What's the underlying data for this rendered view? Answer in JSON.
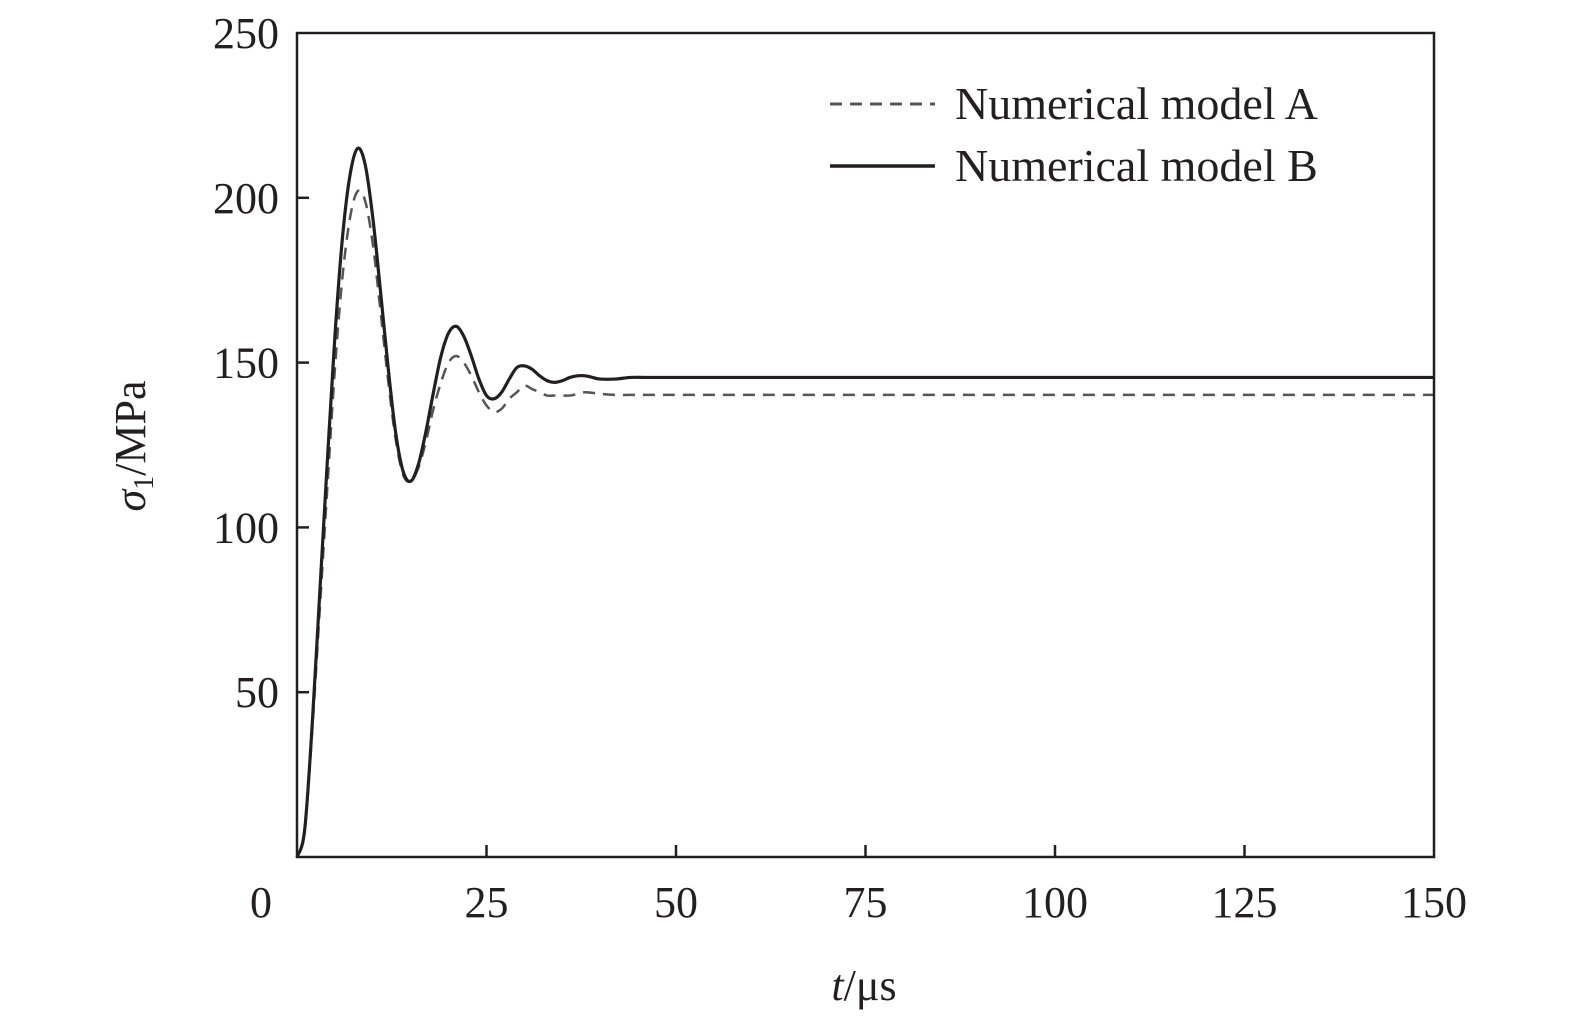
{
  "chart_data": {
    "type": "line",
    "xlabel": {
      "var": "t",
      "unit": "/μs"
    },
    "ylabel": {
      "var": "σ",
      "sub": "1",
      "unit": "/MPa"
    },
    "xlim": [
      0,
      150
    ],
    "ylim": [
      0,
      250
    ],
    "x_ticks": [
      0,
      25,
      50,
      75,
      100,
      125,
      150
    ],
    "x_tick_labels": [
      "0",
      "25",
      "50",
      "75",
      "100",
      "125",
      "150"
    ],
    "y_ticks": [
      50,
      100,
      150,
      200,
      250
    ],
    "y_tick_labels": [
      "50",
      "100",
      "150",
      "200",
      "250"
    ],
    "grid": false,
    "legend_position": "top-right",
    "colors": {
      "model_a": "#555555",
      "model_b": "#231f20"
    },
    "series": [
      {
        "name": "Numerical model A",
        "style": "dashed",
        "x": [
          0,
          1,
          2,
          3,
          4,
          5,
          6,
          7,
          8,
          9,
          10,
          11,
          12,
          13,
          14,
          15,
          16,
          17,
          18,
          19,
          20,
          21,
          22,
          23,
          24,
          25,
          26,
          27,
          28,
          29,
          30,
          31,
          32,
          33,
          34,
          35,
          36,
          37,
          38,
          39,
          40,
          42,
          44,
          46,
          48,
          50,
          53,
          56,
          60,
          62,
          65,
          70,
          75,
          80,
          90,
          100,
          110,
          120,
          130,
          140,
          150
        ],
        "y": [
          0,
          8,
          38,
          75,
          112,
          148,
          176,
          194,
          202,
          199,
          186,
          166,
          145,
          127,
          116,
          114,
          118,
          126,
          136,
          144,
          150,
          152,
          150,
          146,
          141,
          137,
          135,
          136,
          139,
          141,
          143,
          142,
          141,
          140,
          140,
          140,
          140,
          140.5,
          141,
          140.8,
          140.5,
          140.2,
          140.2,
          140.2,
          140.2,
          140.2,
          140.2,
          140.2,
          140.2,
          140.2,
          140.2,
          140.2,
          140.2,
          140.2,
          140.2,
          140.2,
          140.2,
          140.2,
          140.2,
          140.2,
          140.2
        ]
      },
      {
        "name": "Numerical model B",
        "style": "solid",
        "x": [
          0,
          1,
          2,
          3,
          4,
          5,
          6,
          7,
          8,
          9,
          10,
          11,
          12,
          13,
          14,
          15,
          16,
          17,
          18,
          19,
          20,
          21,
          22,
          23,
          24,
          25,
          26,
          27,
          28,
          29,
          30,
          31,
          32,
          33,
          34,
          35,
          36,
          37,
          38,
          39,
          40,
          42,
          44,
          46,
          48,
          50,
          53,
          56,
          60,
          62,
          65,
          70,
          75,
          80,
          90,
          100,
          110,
          120,
          130,
          140,
          150
        ],
        "y": [
          0,
          8,
          40,
          80,
          120,
          158,
          188,
          207,
          215,
          210,
          194,
          172,
          149,
          129,
          117,
          114,
          119,
          129,
          141,
          152,
          159,
          161,
          158,
          152,
          145,
          140,
          139,
          141,
          145,
          148.5,
          149,
          148,
          146,
          144.5,
          144,
          144.5,
          145.5,
          146,
          146,
          145.5,
          145,
          145,
          145.5,
          145.5,
          145.5,
          145.5,
          145.5,
          145.5,
          145.5,
          145.5,
          145.5,
          145.5,
          145.5,
          145.5,
          145.5,
          145.5,
          145.5,
          145.5,
          145.5,
          145.5,
          145.5
        ]
      }
    ]
  }
}
